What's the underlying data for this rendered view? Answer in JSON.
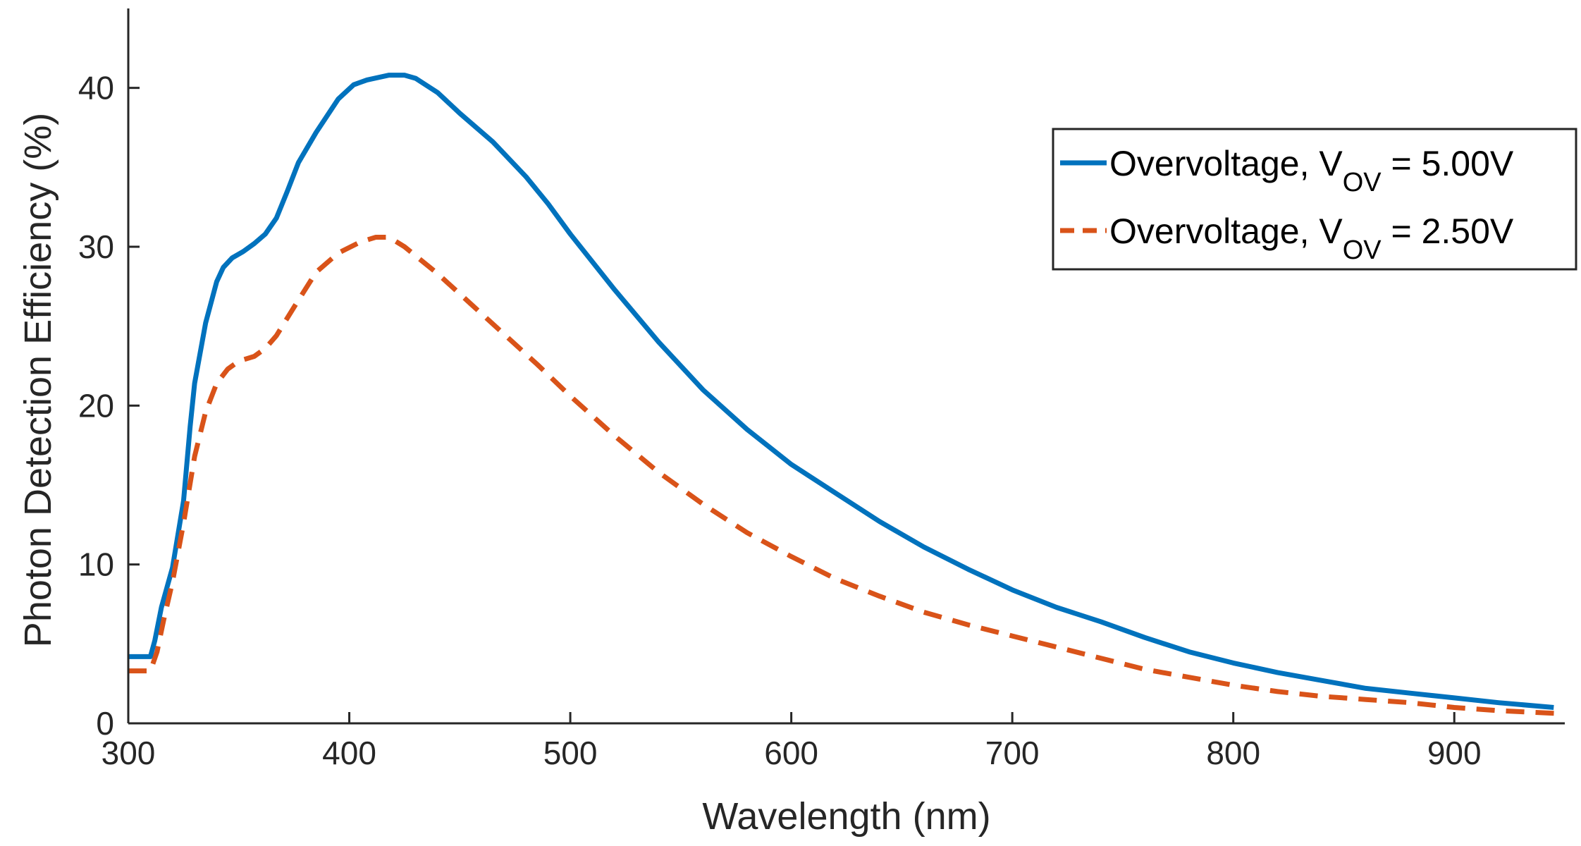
{
  "chart_data": {
    "type": "line",
    "xlabel": "Wavelength (nm)",
    "ylabel": "Photon Detection Efficiency (%)",
    "xlim": [
      300,
      950
    ],
    "ylim": [
      0,
      45
    ],
    "xticks": [
      "300",
      "400",
      "500",
      "600",
      "700",
      "800",
      "900"
    ],
    "yticks": [
      "0",
      "10",
      "20",
      "30",
      "40"
    ],
    "grid": false,
    "legend_position": "top-right",
    "series": [
      {
        "name": "Overvoltage, V_OV = 5.00V",
        "legend_main": "Overvoltage, V",
        "legend_sub": "OV",
        "legend_tail": " = 5.00V",
        "color": "#0072BD",
        "style": "solid",
        "x": [
          300,
          310,
          312,
          315,
          320,
          325,
          328,
          330,
          335,
          340,
          343,
          347,
          352,
          357,
          362,
          367,
          372,
          377,
          385,
          395,
          402,
          408,
          418,
          425,
          430,
          440,
          450,
          465,
          480,
          490,
          500,
          520,
          540,
          560,
          580,
          600,
          620,
          640,
          660,
          680,
          700,
          720,
          740,
          760,
          780,
          800,
          820,
          840,
          860,
          880,
          900,
          920,
          945
        ],
        "values": [
          4.2,
          4.2,
          5.2,
          7.3,
          9.8,
          14.0,
          18.7,
          21.4,
          25.2,
          27.8,
          28.7,
          29.3,
          29.7,
          30.2,
          30.8,
          31.8,
          33.5,
          35.3,
          37.2,
          39.3,
          40.2,
          40.5,
          40.8,
          40.8,
          40.6,
          39.7,
          38.4,
          36.6,
          34.4,
          32.7,
          30.8,
          27.3,
          24.0,
          21.0,
          18.5,
          16.3,
          14.5,
          12.7,
          11.1,
          9.7,
          8.4,
          7.3,
          6.4,
          5.4,
          4.5,
          3.8,
          3.2,
          2.7,
          2.2,
          1.9,
          1.6,
          1.3,
          1.0
        ]
      },
      {
        "name": "Overvoltage, V_OV = 2.50V",
        "legend_main": "Overvoltage, V",
        "legend_sub": "OV",
        "legend_tail": " = 2.50V",
        "color": "#D95319",
        "style": "dashed",
        "x": [
          300,
          310,
          313,
          316,
          320,
          325,
          330,
          335,
          340,
          345,
          350,
          357,
          362,
          367,
          375,
          385,
          395,
          405,
          412,
          418,
          425,
          440,
          455,
          470,
          485,
          500,
          520,
          540,
          560,
          580,
          600,
          620,
          640,
          660,
          680,
          700,
          720,
          740,
          760,
          780,
          800,
          820,
          840,
          860,
          880,
          900,
          920,
          950
        ],
        "values": [
          3.3,
          3.3,
          4.5,
          6.5,
          8.9,
          12.6,
          16.8,
          19.6,
          21.4,
          22.3,
          22.8,
          23.1,
          23.6,
          24.4,
          26.2,
          28.4,
          29.6,
          30.3,
          30.6,
          30.6,
          30.0,
          28.3,
          26.4,
          24.5,
          22.6,
          20.6,
          18.1,
          15.8,
          13.8,
          12.0,
          10.5,
          9.1,
          8.0,
          7.0,
          6.2,
          5.5,
          4.8,
          4.1,
          3.4,
          2.9,
          2.4,
          2.0,
          1.7,
          1.5,
          1.3,
          1.0,
          0.8,
          0.6
        ]
      }
    ]
  }
}
